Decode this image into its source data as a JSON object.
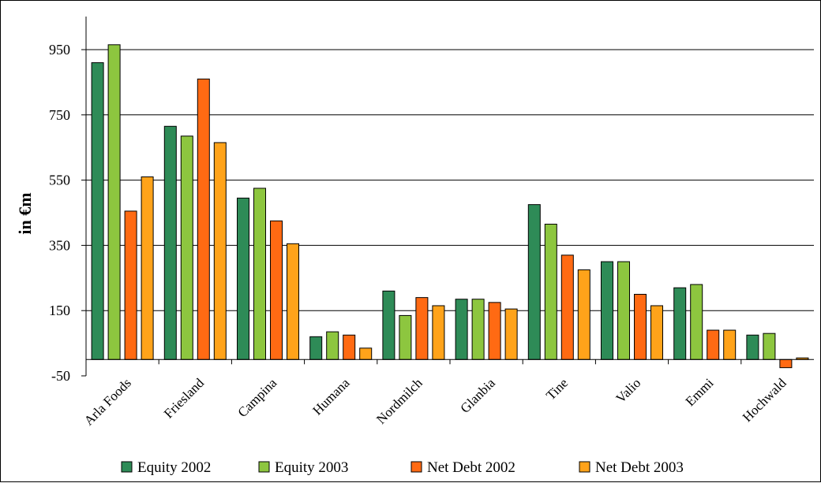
{
  "chart_data": {
    "type": "bar",
    "ylabel": "in €m",
    "xlabel": "",
    "ylim": [
      -50,
      1000
    ],
    "yticks": [
      -50,
      150,
      350,
      550,
      750,
      950
    ],
    "grid": true,
    "legend_position": "bottom",
    "categories": [
      "Arla Foods",
      "Friesland",
      "Campina",
      "Humana",
      "Nordmilch",
      "Glanbia",
      "Tine",
      "Valio",
      "Emmi",
      "Hochwald"
    ],
    "series": [
      {
        "name": "Equity 2002",
        "color": "#2e8b57",
        "values": [
          910,
          715,
          495,
          70,
          210,
          185,
          475,
          300,
          220,
          75
        ]
      },
      {
        "name": "Equity 2003",
        "color": "#8dc63f",
        "values": [
          965,
          685,
          525,
          85,
          135,
          185,
          415,
          300,
          230,
          80
        ]
      },
      {
        "name": "Net Debt 2002",
        "color": "#ff6a13",
        "values": [
          455,
          860,
          425,
          75,
          190,
          175,
          320,
          200,
          90,
          -25
        ]
      },
      {
        "name": "Net Debt 2003",
        "color": "#ffa31a",
        "values": [
          560,
          665,
          355,
          35,
          165,
          155,
          275,
          165,
          90,
          5
        ]
      }
    ]
  }
}
